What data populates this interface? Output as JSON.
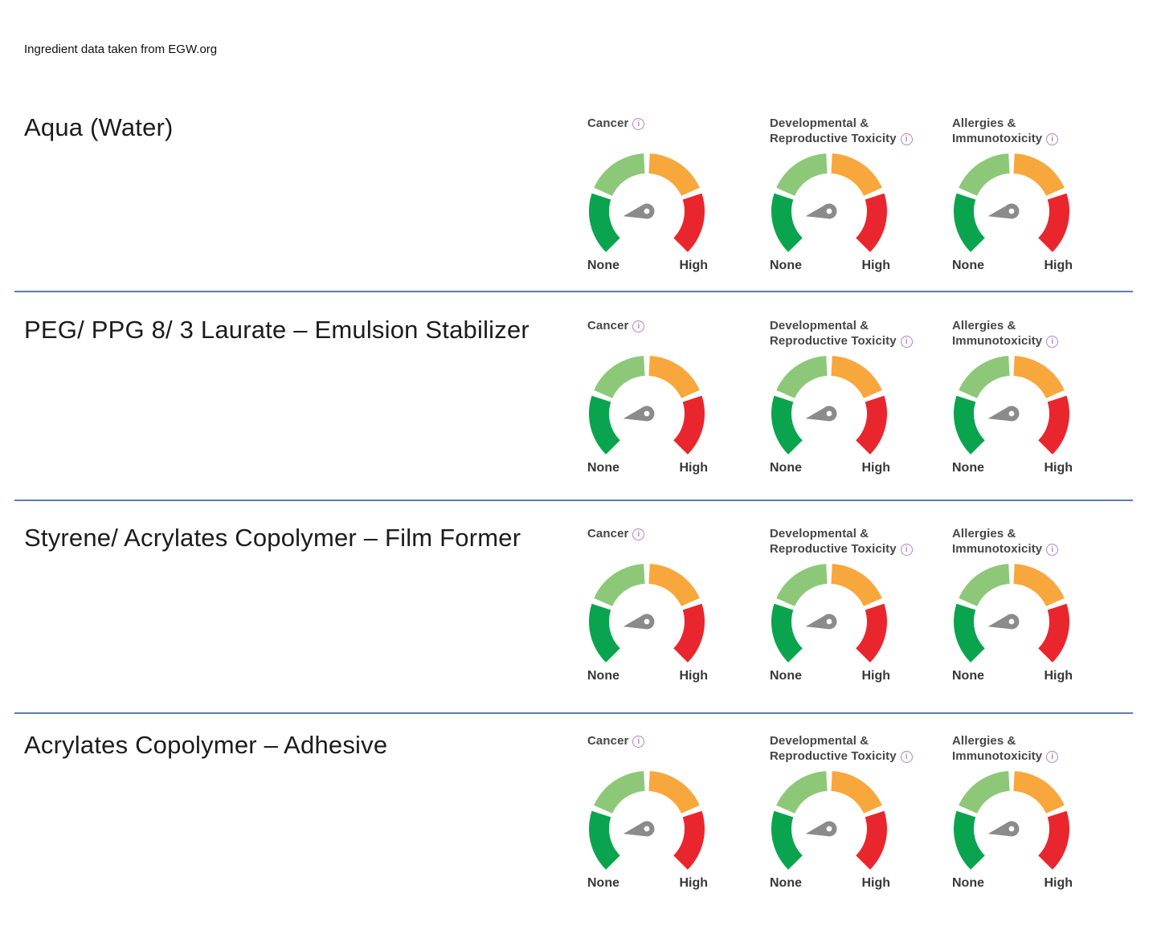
{
  "page": {
    "source_note": "Ingredient data taken from EGW.org",
    "background_color": "#ffffff",
    "divider_color": "#5d7ab2"
  },
  "gauge_defaults": {
    "scale_low_label": "None",
    "scale_high_label": "High",
    "info_icon_glyph": "i",
    "colors": {
      "segment_none": "#0aa44f",
      "segment_low": "#8dc878",
      "segment_moderate": "#f8a73c",
      "segment_high": "#e9262e",
      "needle": "#8b8b8b",
      "needle_hub_dot": "#ffffff",
      "title_text": "#464646",
      "scale_label_text": "#383838",
      "info_icon": "#b583be"
    },
    "arc": {
      "start_deg": 225,
      "end_deg": -45,
      "segments": 4,
      "gap_deg": 6
    }
  },
  "metrics": [
    {
      "id": "cancer",
      "title_lines": [
        "Cancer"
      ]
    },
    {
      "id": "developmental-reproductive-toxicity",
      "title_lines": [
        "Developmental &",
        "Reproductive Toxicity"
      ]
    },
    {
      "id": "allergies-immunotoxicity",
      "title_lines": [
        "Allergies &",
        "Immunotoxicity"
      ]
    }
  ],
  "ingredients": [
    {
      "name": "Aqua (Water)",
      "gauges": [
        {
          "metric": "Cancer",
          "reading": "None",
          "needle_angle_deg": 192
        },
        {
          "metric": "Developmental & Reproductive Toxicity",
          "reading": "None",
          "needle_angle_deg": 192
        },
        {
          "metric": "Allergies & Immunotoxicity",
          "reading": "None",
          "needle_angle_deg": 192
        }
      ]
    },
    {
      "name": "PEG/ PPG 8/ 3 Laurate – Emulsion Stabilizer",
      "gauges": [
        {
          "metric": "Cancer",
          "reading": "None",
          "needle_angle_deg": 192
        },
        {
          "metric": "Developmental & Reproductive Toxicity",
          "reading": "None",
          "needle_angle_deg": 192
        },
        {
          "metric": "Allergies & Immunotoxicity",
          "reading": "None",
          "needle_angle_deg": 192
        }
      ]
    },
    {
      "name": "Styrene/ Acrylates Copolymer – Film Former",
      "gauges": [
        {
          "metric": "Cancer",
          "reading": "None",
          "needle_angle_deg": 192
        },
        {
          "metric": "Developmental & Reproductive Toxicity",
          "reading": "None",
          "needle_angle_deg": 192
        },
        {
          "metric": "Allergies & Immunotoxicity",
          "reading": "None",
          "needle_angle_deg": 192
        }
      ]
    },
    {
      "name": "Acrylates Copolymer – Adhesive",
      "gauges": [
        {
          "metric": "Cancer",
          "reading": "None",
          "needle_angle_deg": 192
        },
        {
          "metric": "Developmental & Reproductive Toxicity",
          "reading": "None",
          "needle_angle_deg": 192
        },
        {
          "metric": "Allergies & Immunotoxicity",
          "reading": "None",
          "needle_angle_deg": 192
        }
      ]
    }
  ]
}
